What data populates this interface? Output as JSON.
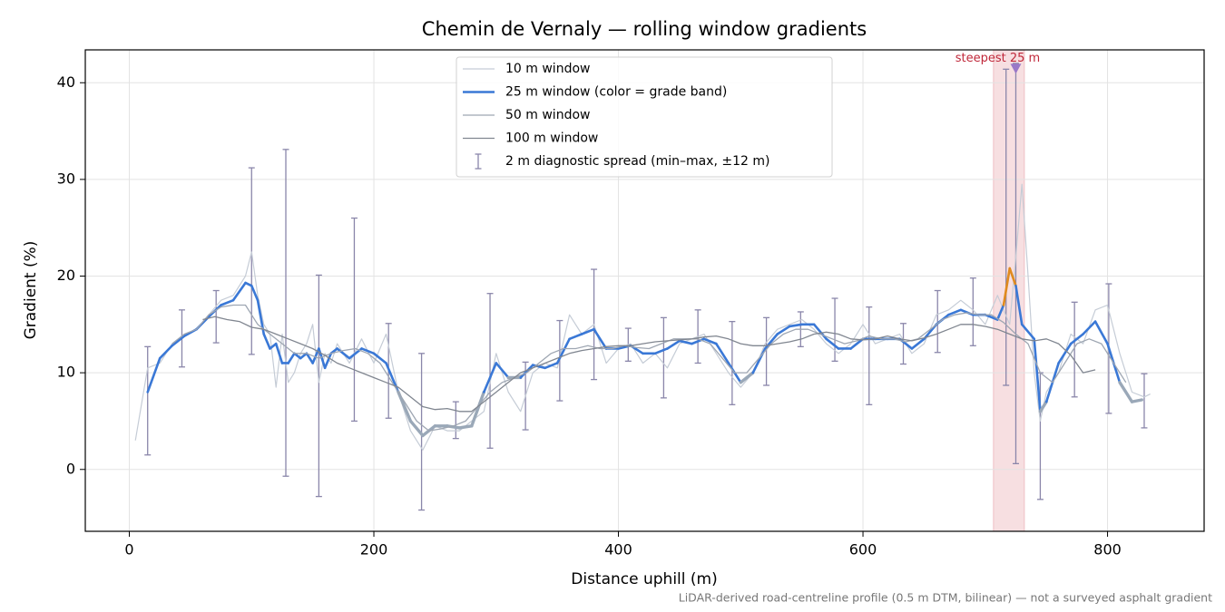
{
  "chart_data": {
    "type": "line",
    "title": "Chemin de Vernaly — rolling window gradients",
    "x_label": "Distance uphill (m)",
    "y_label": "Gradient (%)",
    "footnote": "LiDAR-derived road-centreline profile (0.5 m DTM, bilinear) — not a surveyed asphalt gradient",
    "xlim": [
      -36,
      879
    ],
    "ylim": [
      -6.4,
      43.4
    ],
    "xticks": [
      0,
      200,
      400,
      600,
      800
    ],
    "yticks": [
      0,
      10,
      20,
      30,
      40
    ],
    "grid": true,
    "legend": "upper center",
    "series": [
      {
        "name": "10 m window",
        "color": "#c5ccd6",
        "width": 1.2,
        "x": [
          5,
          15,
          25,
          35,
          45,
          55,
          65,
          75,
          85,
          95,
          100,
          105,
          110,
          115,
          120,
          125,
          130,
          135,
          140,
          145,
          150,
          155,
          160,
          165,
          170,
          180,
          190,
          200,
          210,
          220,
          230,
          240,
          250,
          260,
          270,
          280,
          290,
          300,
          310,
          320,
          330,
          340,
          350,
          360,
          370,
          380,
          390,
          400,
          410,
          420,
          430,
          440,
          450,
          460,
          470,
          480,
          490,
          500,
          510,
          520,
          530,
          540,
          550,
          560,
          570,
          580,
          590,
          600,
          610,
          620,
          630,
          640,
          650,
          660,
          670,
          680,
          690,
          700,
          710,
          720,
          725,
          730,
          735,
          740,
          745,
          750,
          760,
          770,
          780,
          790,
          800,
          810,
          820,
          830,
          835
        ],
        "values": [
          3,
          10.5,
          11,
          13,
          14,
          14.5,
          16,
          17.5,
          18,
          20,
          22.5,
          18,
          15,
          14,
          8.5,
          14,
          9,
          10,
          12,
          13,
          15,
          9,
          12,
          11,
          13,
          11,
          13.5,
          11,
          14,
          8,
          4,
          2,
          4.5,
          4,
          4,
          5,
          6,
          12,
          8,
          6,
          10,
          11,
          10.5,
          16,
          14,
          15,
          11,
          12.5,
          13,
          11,
          12,
          10.5,
          13,
          13.5,
          14,
          12,
          10,
          8.5,
          10,
          13,
          14.5,
          15,
          15.5,
          14.5,
          13,
          12,
          13,
          15,
          13,
          13.5,
          14,
          12,
          13,
          16,
          16.5,
          17.5,
          16.5,
          15,
          18,
          15,
          22,
          29.5,
          20,
          10,
          5,
          8,
          10,
          14,
          13,
          16.5,
          17,
          12,
          8,
          7.5,
          7.8
        ]
      },
      {
        "name": "25 m window (color = grade band)",
        "color": "#3a78d6",
        "width": 2.6,
        "grade_bands": {
          "thresholds": [
            10,
            20
          ],
          "colors": [
            "#9aa8b8",
            "#3a78d6",
            "#e08a1e"
          ]
        },
        "x": [
          15,
          25,
          35,
          45,
          55,
          65,
          75,
          85,
          95,
          100,
          105,
          110,
          115,
          120,
          125,
          130,
          135,
          140,
          145,
          150,
          155,
          160,
          165,
          170,
          180,
          190,
          200,
          210,
          220,
          230,
          240,
          250,
          260,
          270,
          280,
          290,
          300,
          310,
          320,
          330,
          340,
          350,
          360,
          370,
          380,
          390,
          400,
          410,
          420,
          430,
          440,
          450,
          460,
          470,
          480,
          490,
          500,
          510,
          520,
          530,
          540,
          550,
          560,
          570,
          580,
          590,
          600,
          610,
          620,
          630,
          640,
          650,
          660,
          670,
          680,
          690,
          700,
          710,
          715,
          720,
          725,
          730,
          740,
          745,
          750,
          760,
          770,
          780,
          790,
          800,
          810,
          820,
          828
        ],
        "values": [
          8,
          11.5,
          12.8,
          13.8,
          14.5,
          15.8,
          17,
          17.5,
          19.3,
          19,
          17.5,
          14,
          12.5,
          13,
          11,
          11,
          12,
          11.5,
          12,
          11,
          12.5,
          10.5,
          12,
          12.5,
          11.5,
          12.5,
          12,
          11,
          8,
          5,
          3.5,
          4.5,
          4.5,
          4.3,
          4.5,
          8,
          11,
          9.5,
          9.5,
          10.8,
          10.5,
          11,
          13.5,
          14,
          14.5,
          12.5,
          12.5,
          12.8,
          12,
          12,
          12.5,
          13.3,
          13,
          13.5,
          13,
          11,
          9,
          10,
          12.5,
          14,
          14.8,
          15,
          15,
          13.5,
          12.5,
          12.5,
          13.5,
          13.5,
          13.5,
          13.5,
          12.5,
          13.5,
          15,
          16,
          16.5,
          16,
          16,
          15.5,
          17,
          20.8,
          19,
          15,
          13.5,
          6,
          7,
          11,
          13,
          14,
          15.3,
          13,
          9,
          7,
          7.2
        ]
      },
      {
        "name": "50 m window",
        "color": "#9ea6b2",
        "width": 1.3,
        "x": [
          35,
          45,
          55,
          65,
          75,
          85,
          95,
          105,
          115,
          125,
          135,
          145,
          155,
          165,
          175,
          185,
          195,
          205,
          215,
          225,
          235,
          245,
          255,
          265,
          275,
          285,
          295,
          305,
          315,
          325,
          335,
          345,
          355,
          365,
          375,
          385,
          395,
          405,
          415,
          425,
          435,
          445,
          455,
          465,
          475,
          485,
          495,
          505,
          515,
          525,
          535,
          545,
          555,
          565,
          575,
          585,
          595,
          605,
          615,
          625,
          635,
          645,
          655,
          665,
          675,
          685,
          695,
          705,
          715,
          725,
          735,
          745,
          755,
          765,
          775,
          785,
          795,
          805,
          815
        ],
        "values": [
          13,
          14,
          14.5,
          16,
          16.8,
          17,
          17,
          15,
          14,
          13,
          12,
          12,
          11.5,
          12,
          12.3,
          12.5,
          12,
          11,
          9,
          7,
          5,
          4,
          4.2,
          4.5,
          5,
          6.5,
          8,
          9,
          9.5,
          10,
          11,
          12,
          12.5,
          12.5,
          12.8,
          12.5,
          12.5,
          12.8,
          12.6,
          12.5,
          13,
          13.5,
          13.5,
          13.5,
          13,
          11.5,
          10,
          10,
          11.5,
          13,
          14,
          14.5,
          14.5,
          14,
          13.5,
          13,
          13.3,
          13.8,
          13.5,
          13.5,
          13.2,
          13.5,
          14.5,
          15.5,
          16,
          16.2,
          16,
          16,
          15.2,
          14,
          13,
          10,
          9,
          11,
          13,
          13.5,
          13,
          11,
          9
        ]
      },
      {
        "name": "100 m window",
        "color": "#808690",
        "width": 1.3,
        "x": [
          60,
          70,
          80,
          90,
          100,
          110,
          120,
          130,
          140,
          150,
          160,
          170,
          180,
          190,
          200,
          210,
          220,
          230,
          240,
          250,
          260,
          270,
          280,
          290,
          300,
          310,
          320,
          330,
          340,
          350,
          360,
          370,
          380,
          390,
          400,
          410,
          420,
          430,
          440,
          450,
          460,
          470,
          480,
          490,
          500,
          510,
          520,
          530,
          540,
          550,
          560,
          570,
          580,
          590,
          600,
          610,
          620,
          630,
          640,
          650,
          660,
          670,
          680,
          690,
          700,
          710,
          720,
          730,
          740,
          750,
          760,
          770,
          780,
          790
        ],
        "values": [
          15.5,
          15.8,
          15.5,
          15.3,
          14.7,
          14.5,
          14,
          13.5,
          13,
          12.5,
          11.8,
          11,
          10.5,
          10,
          9.5,
          9,
          8.5,
          7.5,
          6.5,
          6.2,
          6.3,
          6,
          6,
          7,
          8,
          9,
          10,
          10.5,
          11,
          11.5,
          12,
          12.3,
          12.5,
          12.7,
          12.8,
          12.8,
          13,
          13.2,
          13.3,
          13.4,
          13.5,
          13.7,
          13.8,
          13.5,
          13,
          12.8,
          12.8,
          13,
          13.2,
          13.5,
          14,
          14.2,
          14,
          13.5,
          13.4,
          13.5,
          13.8,
          13.5,
          13.3,
          13.6,
          14,
          14.5,
          15,
          15,
          14.8,
          14.5,
          14,
          13.5,
          13.3,
          13.5,
          13,
          11.8,
          10,
          10.3
        ]
      }
    ],
    "error_bars": {
      "name": "2 m diagnostic spread (min–max, ±12 m)",
      "color": "#8a86aa",
      "x": [
        15,
        43,
        71,
        100,
        128,
        155,
        184,
        212,
        239,
        267,
        295,
        324,
        352,
        380,
        408,
        437,
        465,
        493,
        521,
        549,
        577,
        605,
        633,
        661,
        690,
        717,
        725,
        745,
        773,
        801,
        830
      ],
      "high": [
        12.7,
        16.5,
        18.5,
        31.2,
        33.1,
        20.1,
        26.0,
        15.1,
        12.0,
        7.0,
        18.2,
        11.1,
        15.4,
        20.7,
        14.6,
        15.7,
        16.5,
        15.3,
        15.7,
        16.3,
        17.7,
        16.8,
        15.1,
        18.5,
        19.8,
        41.4,
        42.0,
        10.0,
        17.3,
        19.2,
        9.9
      ],
      "low": [
        1.5,
        10.6,
        13.1,
        11.9,
        -0.7,
        -2.8,
        5.0,
        5.3,
        -4.2,
        3.2,
        2.2,
        4.1,
        7.1,
        9.3,
        11.2,
        7.4,
        11.0,
        6.7,
        8.7,
        12.7,
        11.2,
        6.7,
        10.9,
        12.1,
        12.8,
        8.7,
        0.6,
        -3.1,
        7.5,
        5.8,
        4.3
      ]
    },
    "highlight": {
      "xlim": [
        706.7,
        732
      ],
      "color": "#e8a3a8"
    },
    "annotation": {
      "text": "steepest 25 m",
      "x": 725,
      "y": 41.4,
      "color": "#c0283a",
      "marker_color": "#9a78c8"
    }
  }
}
